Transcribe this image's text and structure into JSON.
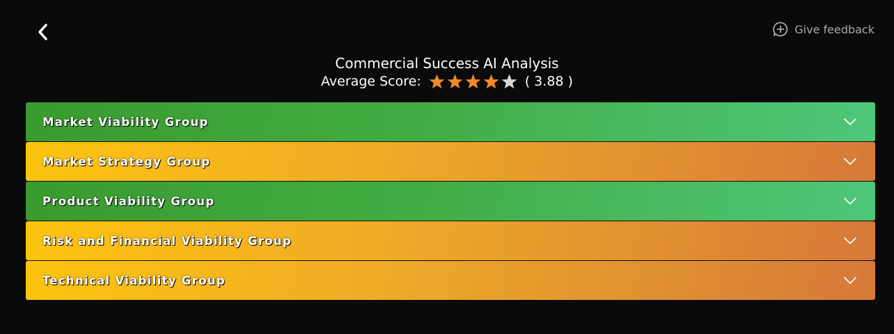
{
  "nav": {
    "back_icon": "chevron-left-icon",
    "feedback": {
      "icon": "chat-plus-icon",
      "label": "Give feedback"
    }
  },
  "header": {
    "title": "Commercial Success AI Analysis",
    "score_label": "Average Score:",
    "score_value": "( 3.88 )",
    "rating": 3.88,
    "rating_max": 5,
    "star_filled_color": "#f08a2c",
    "star_empty_color": "#d8d8d8"
  },
  "groups": [
    {
      "label": "Market Viability Group",
      "status": "green",
      "icon": "chevron-down-icon"
    },
    {
      "label": "Market Strategy Group",
      "status": "orange",
      "icon": "chevron-down-icon"
    },
    {
      "label": "Product Viability Group",
      "status": "green",
      "icon": "chevron-down-icon"
    },
    {
      "label": "Risk and Financial Viability Group",
      "status": "orange",
      "icon": "chevron-down-icon"
    },
    {
      "label": "Technical Viability Group",
      "status": "orange",
      "icon": "chevron-down-icon"
    }
  ],
  "colors": {
    "background": "#0a0a0a",
    "green": "#41ac43",
    "orange": "#f0ac26"
  }
}
